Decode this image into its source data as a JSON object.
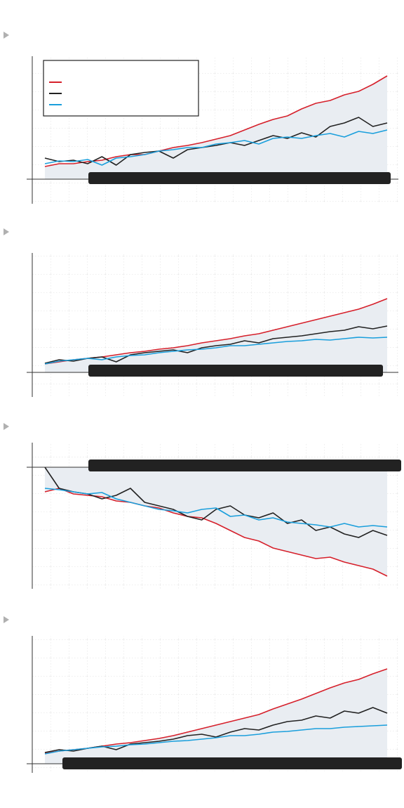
{
  "chart_data": [
    {
      "type": "line",
      "legend": "upper left",
      "grid": true,
      "ylim": [
        -35,
        175
      ],
      "series": [
        {
          "color": "#d6202b",
          "values": [
            18,
            22,
            22,
            25,
            27,
            32,
            35,
            35,
            40,
            45,
            48,
            52,
            57,
            62,
            70,
            78,
            85,
            90,
            100,
            108,
            112,
            120,
            125,
            135,
            147
          ]
        },
        {
          "color": "#222222",
          "values": [
            30,
            25,
            27,
            22,
            32,
            20,
            35,
            38,
            40,
            30,
            42,
            45,
            48,
            52,
            48,
            55,
            62,
            58,
            66,
            60,
            75,
            80,
            88,
            75,
            80
          ]
        },
        {
          "color": "#1a9fdc",
          "values": [
            22,
            26,
            25,
            28,
            20,
            30,
            32,
            35,
            40,
            42,
            45,
            45,
            50,
            52,
            55,
            50,
            58,
            60,
            58,
            62,
            65,
            60,
            68,
            65,
            70
          ]
        }
      ]
    },
    {
      "type": "line",
      "grid": true,
      "ylim": [
        -35,
        170
      ],
      "series": [
        {
          "color": "#d6202b",
          "values": [
            12,
            15,
            18,
            20,
            22,
            25,
            28,
            30,
            33,
            35,
            38,
            42,
            45,
            48,
            52,
            55,
            60,
            65,
            70,
            75,
            80,
            85,
            90,
            97,
            105
          ]
        },
        {
          "color": "#222222",
          "values": [
            13,
            18,
            16,
            20,
            22,
            15,
            25,
            28,
            30,
            32,
            28,
            35,
            38,
            40,
            45,
            42,
            48,
            50,
            52,
            55,
            58,
            60,
            65,
            62,
            66
          ]
        },
        {
          "color": "#1a9fdc",
          "values": [
            12,
            16,
            18,
            20,
            18,
            22,
            24,
            25,
            28,
            30,
            32,
            33,
            35,
            38,
            38,
            40,
            42,
            44,
            45,
            47,
            46,
            48,
            50,
            49,
            50
          ]
        }
      ]
    },
    {
      "type": "line",
      "grid": true,
      "ylim": [
        -173,
        35
      ],
      "series": [
        {
          "color": "#d6202b",
          "values": [
            -35,
            -30,
            -38,
            -40,
            -42,
            -48,
            -50,
            -55,
            -58,
            -65,
            -70,
            -72,
            -80,
            -90,
            -100,
            -105,
            -115,
            -120,
            -125,
            -130,
            -128,
            -135,
            -140,
            -145,
            -155
          ]
        },
        {
          "color": "#222222",
          "values": [
            0,
            -30,
            -35,
            -38,
            -45,
            -40,
            -30,
            -50,
            -55,
            -60,
            -70,
            -75,
            -60,
            -55,
            -68,
            -72,
            -65,
            -80,
            -75,
            -90,
            -85,
            -95,
            -100,
            -90,
            -97
          ]
        },
        {
          "color": "#1a9fdc",
          "values": [
            -30,
            -32,
            -35,
            -38,
            -36,
            -45,
            -50,
            -55,
            -60,
            -62,
            -65,
            -60,
            -58,
            -70,
            -68,
            -75,
            -72,
            -78,
            -80,
            -82,
            -85,
            -80,
            -85,
            -83,
            -85
          ]
        }
      ]
    },
    {
      "type": "line",
      "grid": true,
      "ylim": [
        -13,
        182
      ],
      "series": [
        {
          "color": "#d6202b",
          "values": [
            15,
            18,
            20,
            22,
            25,
            28,
            30,
            33,
            36,
            40,
            45,
            50,
            55,
            60,
            65,
            70,
            78,
            85,
            92,
            100,
            108,
            115,
            120,
            128,
            135
          ]
        },
        {
          "color": "#222222",
          "values": [
            16,
            20,
            18,
            22,
            25,
            20,
            28,
            30,
            32,
            35,
            40,
            42,
            38,
            45,
            50,
            48,
            55,
            60,
            62,
            68,
            65,
            75,
            72,
            80,
            72
          ]
        },
        {
          "color": "#1a9fdc",
          "values": [
            14,
            18,
            20,
            22,
            24,
            25,
            27,
            28,
            30,
            32,
            33,
            35,
            37,
            40,
            40,
            42,
            45,
            46,
            48,
            50,
            50,
            52,
            53,
            54,
            55
          ]
        }
      ]
    }
  ]
}
